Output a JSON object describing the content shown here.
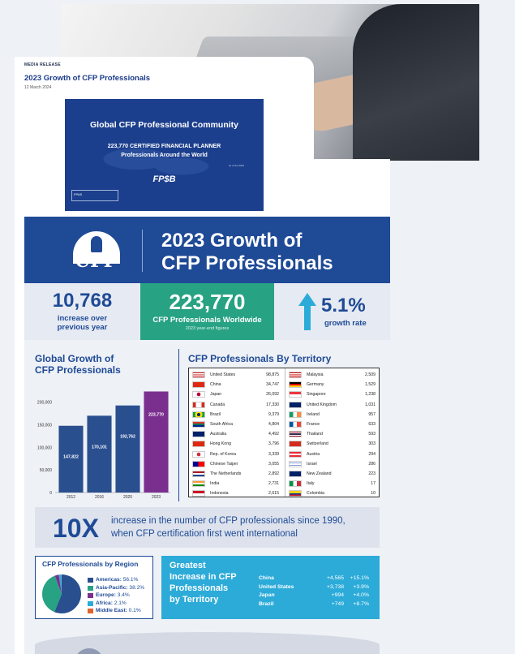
{
  "release": {
    "label": "MEDIA RELEASE",
    "title": "2023 Growth of CFP Professionals",
    "date": "12 March 2024"
  },
  "banner": {
    "title": "Global CFP Professional Community",
    "sub1": "223,770 CERTIFIED FINANCIAL PLANNER",
    "sub2": "Professionals Around the World",
    "as_of": "as of the 2023",
    "logo": "FP$B",
    "fpas": "FPAS"
  },
  "infographic": {
    "logo_word": "CFP",
    "title_line1": "2023 Growth of",
    "title_line2": "CFP Professionals",
    "increase": {
      "value": "10,768",
      "label1": "increase over",
      "label2": "previous year"
    },
    "worldwide": {
      "value": "223,770",
      "label": "CFP Professionals Worldwide",
      "sub": "2023 year-end figures"
    },
    "growth": {
      "value": "5.1%",
      "label": "growth rate"
    },
    "global_title1": "Global Growth of",
    "global_title2": "CFP Professionals",
    "territory_title": "CFP Professionals By Territory",
    "tenx": {
      "big": "10X",
      "line1": "increase in the number of CFP professionals since 1990,",
      "line2": "when CFP certification first went international"
    },
    "region": {
      "title": "CFP Professionals by Region",
      "items": [
        {
          "name": "Americas:",
          "value": "56.1%",
          "color": "#2a4f8f"
        },
        {
          "name": "Asia-Pacific:",
          "value": "38.2%",
          "color": "#27a283"
        },
        {
          "name": "Europe:",
          "value": "3.4%",
          "color": "#7a2f8f"
        },
        {
          "name": "Africa:",
          "value": "2.1%",
          "color": "#2cabd9"
        },
        {
          "name": "Middle East:",
          "value": "0.1%",
          "color": "#e0642a"
        }
      ]
    },
    "greatest": {
      "line1": "Greatest",
      "line2": "Increase in CFP",
      "line3": "Professionals",
      "line4": "by Territory",
      "rows": [
        {
          "country": "China",
          "abs": "+4,565",
          "pct": "+15.1%"
        },
        {
          "country": "United States",
          "abs": "+3,738",
          "pct": "+3.9%"
        },
        {
          "country": "Japan",
          "abs": "+994",
          "pct": "+4.0%"
        },
        {
          "country": "Brazil",
          "abs": "+749",
          "pct": "+8.7%"
        }
      ]
    },
    "territories_left": [
      {
        "name": "United States",
        "value": "98,875",
        "flag": "us"
      },
      {
        "name": "China",
        "value": "34,747",
        "flag": "cn"
      },
      {
        "name": "Japan",
        "value": "26,092",
        "flag": "jp"
      },
      {
        "name": "Canada",
        "value": "17,330",
        "flag": "ca"
      },
      {
        "name": "Brazil",
        "value": "9,379",
        "flag": "br"
      },
      {
        "name": "South Africa",
        "value": "4,804",
        "flag": "za"
      },
      {
        "name": "Australia",
        "value": "4,492",
        "flag": "au"
      },
      {
        "name": "Hong Kong",
        "value": "3,796",
        "flag": "hk"
      },
      {
        "name": "Rep. of Korea",
        "value": "3,339",
        "flag": "kr"
      },
      {
        "name": "Chinese Taipei",
        "value": "3,055",
        "flag": "tw"
      },
      {
        "name": "The Netherlands",
        "value": "2,892",
        "flag": "nl"
      },
      {
        "name": "India",
        "value": "2,731",
        "flag": "in"
      },
      {
        "name": "Indonesia",
        "value": "2,615",
        "flag": "id"
      }
    ],
    "territories_right": [
      {
        "name": "Malaysia",
        "value": "2,509",
        "flag": "my"
      },
      {
        "name": "Germany",
        "value": "1,529",
        "flag": "de"
      },
      {
        "name": "Singapore",
        "value": "1,238",
        "flag": "sg"
      },
      {
        "name": "United Kingdom",
        "value": "1,031",
        "flag": "gb"
      },
      {
        "name": "Ireland",
        "value": "957",
        "flag": "ie"
      },
      {
        "name": "France",
        "value": "633",
        "flag": "fr"
      },
      {
        "name": "Thailand",
        "value": "593",
        "flag": "th"
      },
      {
        "name": "Switzerland",
        "value": "303",
        "flag": "ch"
      },
      {
        "name": "Austria",
        "value": "294",
        "flag": "at"
      },
      {
        "name": "Israel",
        "value": "286",
        "flag": "il"
      },
      {
        "name": "New Zealand",
        "value": "223",
        "flag": "nz"
      },
      {
        "name": "Italy",
        "value": "17",
        "flag": "it"
      },
      {
        "name": "Colombia",
        "value": "10",
        "flag": "co"
      }
    ]
  },
  "chart_data": {
    "type": "bar",
    "categories": [
      "2012",
      "2016",
      "2020",
      "2023"
    ],
    "values": [
      147822,
      170101,
      192762,
      223770
    ],
    "data_labels": [
      "147,822",
      "170,101",
      "192,762",
      "223,770"
    ],
    "yticks": [
      "0",
      "50,000",
      "100,000",
      "150,000",
      "200,000"
    ],
    "ytick_values": [
      0,
      50000,
      100000,
      150000,
      200000
    ],
    "ylim": [
      0,
      230000
    ],
    "colors": [
      "#2a4f8f",
      "#2a4f8f",
      "#2a4f8f",
      "#7a2f8f"
    ],
    "title": "Global Growth of CFP Professionals"
  }
}
